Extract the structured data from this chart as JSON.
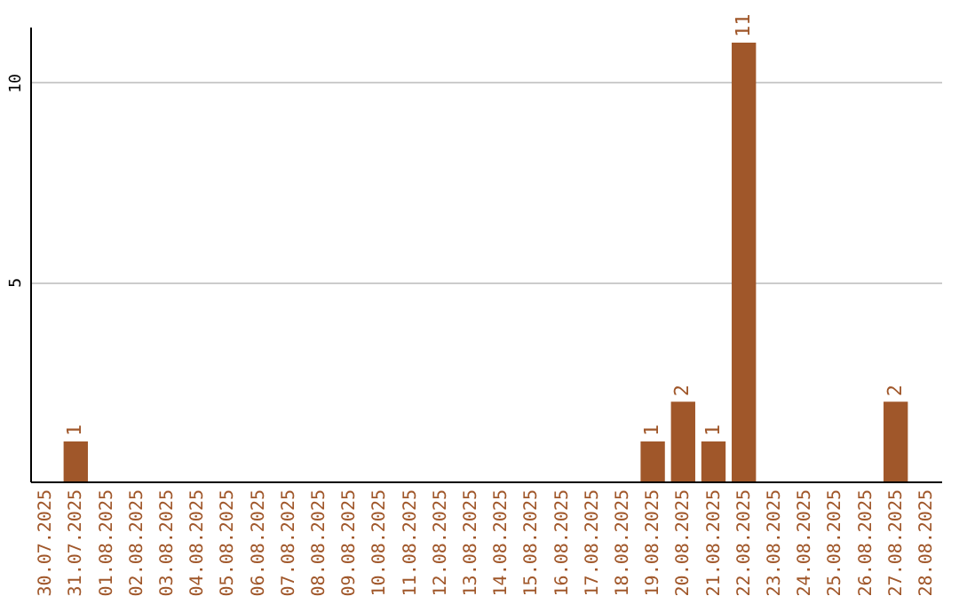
{
  "chart_data": {
    "type": "bar",
    "categories": [
      "30.07.2025",
      "31.07.2025",
      "01.08.2025",
      "02.08.2025",
      "03.08.2025",
      "04.08.2025",
      "05.08.2025",
      "06.08.2025",
      "07.08.2025",
      "08.08.2025",
      "09.08.2025",
      "10.08.2025",
      "11.08.2025",
      "12.08.2025",
      "13.08.2025",
      "14.08.2025",
      "15.08.2025",
      "16.08.2025",
      "17.08.2025",
      "18.08.2025",
      "19.08.2025",
      "20.08.2025",
      "21.08.2025",
      "22.08.2025",
      "23.08.2025",
      "24.08.2025",
      "25.08.2025",
      "26.08.2025",
      "27.08.2025",
      "28.08.2025"
    ],
    "values": [
      0,
      1,
      0,
      0,
      0,
      0,
      0,
      0,
      0,
      0,
      0,
      0,
      0,
      0,
      0,
      0,
      0,
      0,
      0,
      0,
      1,
      2,
      1,
      11,
      0,
      0,
      0,
      0,
      2,
      0
    ],
    "value_labels": [
      null,
      "1",
      null,
      null,
      null,
      null,
      null,
      null,
      null,
      null,
      null,
      null,
      null,
      null,
      null,
      null,
      null,
      null,
      null,
      null,
      "1",
      "2",
      "1",
      "11",
      null,
      null,
      null,
      null,
      "2",
      null
    ],
    "color": "#a0572a",
    "ylim": [
      0,
      11.4
    ],
    "yticks": [
      5,
      10
    ],
    "grid": "y"
  }
}
